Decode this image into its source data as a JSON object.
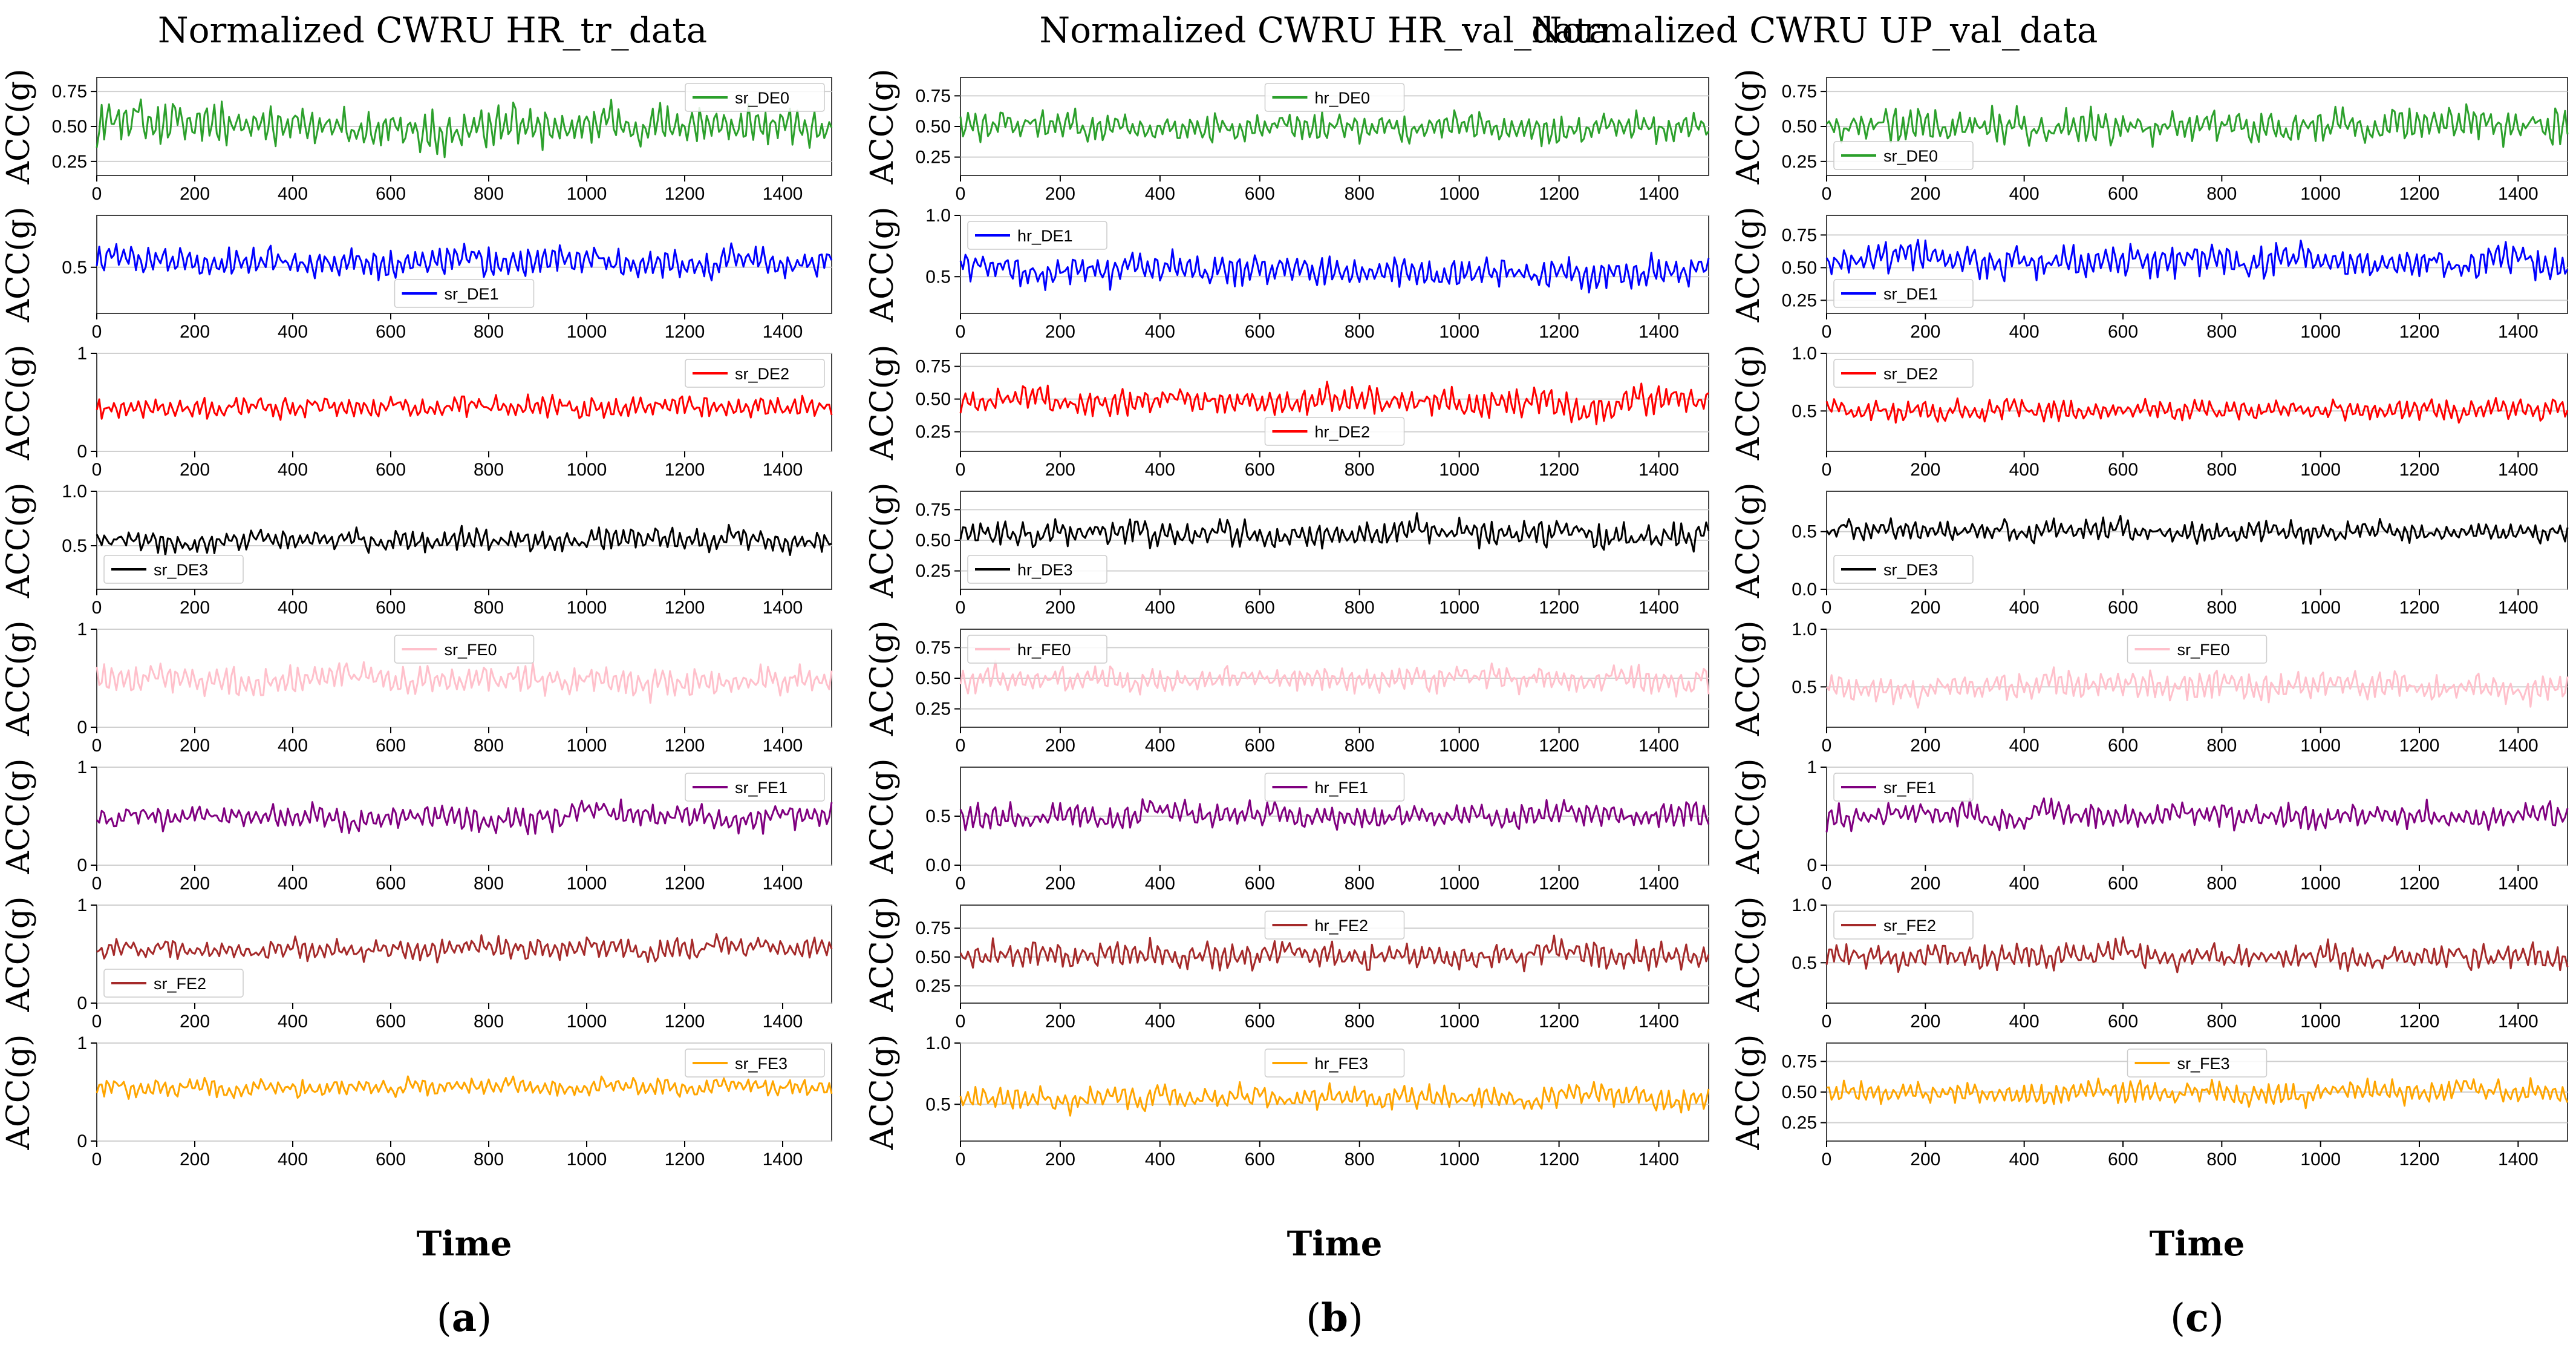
{
  "figure": {
    "xlabel": "Time",
    "ylabel": "ACC(g)"
  },
  "chart_data": [
    {
      "type": "line",
      "panel": "a",
      "caption_open": "(",
      "caption_letter": "a",
      "caption_close": ")",
      "title": "Normalized CWRU HR_tr_data",
      "xlabel": "Time",
      "xlim": [
        0,
        1500
      ],
      "xticks": [
        0,
        200,
        400,
        600,
        800,
        1000,
        1200,
        1400
      ],
      "subplots": [
        {
          "label": "sr_DE0",
          "color": "#2ca02c",
          "ylabel": "ACC(g)",
          "ylim": [
            0.15,
            0.85
          ],
          "yticks": [
            0.25,
            0.5,
            0.75
          ],
          "yticklabels": [
            "0.25",
            "0.50",
            "0.75"
          ],
          "legend": "upper-right",
          "mean": 0.5,
          "amp": 0.16,
          "seed": 11
        },
        {
          "label": "sr_DE1",
          "color": "#0000ff",
          "ylabel": "ACC(g)",
          "ylim": [
            0.1,
            0.95
          ],
          "yticks": [
            0.5
          ],
          "yticklabels": [
            "0.5"
          ],
          "legend": "lower-center",
          "mean": 0.55,
          "amp": 0.14,
          "seed": 12
        },
        {
          "label": "sr_DE2",
          "color": "#ff0000",
          "ylabel": "ACC(g)",
          "ylim": [
            0,
            1
          ],
          "yticks": [
            0,
            1
          ],
          "yticklabels": [
            "0",
            "1"
          ],
          "legend": "upper-right",
          "mean": 0.45,
          "amp": 0.12,
          "seed": 13
        },
        {
          "label": "sr_DE3",
          "color": "#000000",
          "ylabel": "ACC(g)",
          "ylim": [
            0.1,
            1.0
          ],
          "yticks": [
            0.5,
            1.0
          ],
          "yticklabels": [
            "0.5",
            "1.0"
          ],
          "legend": "lower-left",
          "mean": 0.55,
          "amp": 0.11,
          "seed": 14
        },
        {
          "label": "sr_FE0",
          "color": "#ffc0cb",
          "ylabel": "ACC(g)",
          "ylim": [
            0,
            1
          ],
          "yticks": [
            0,
            1
          ],
          "yticklabels": [
            "0",
            "1"
          ],
          "legend": "upper-center",
          "mean": 0.5,
          "amp": 0.16,
          "seed": 15
        },
        {
          "label": "sr_FE1",
          "color": "#800080",
          "ylabel": "ACC(g)",
          "ylim": [
            0,
            1
          ],
          "yticks": [
            0,
            1
          ],
          "yticklabels": [
            "0",
            "1"
          ],
          "legend": "upper-right",
          "mean": 0.5,
          "amp": 0.14,
          "seed": 16
        },
        {
          "label": "sr_FE2",
          "color": "#a52a2a",
          "ylabel": "ACC(g)",
          "ylim": [
            0,
            1
          ],
          "yticks": [
            0,
            1
          ],
          "yticklabels": [
            "0",
            "1"
          ],
          "legend": "lower-left",
          "mean": 0.55,
          "amp": 0.12,
          "seed": 17
        },
        {
          "label": "sr_FE3",
          "color": "#ffa500",
          "ylabel": "ACC(g)",
          "ylim": [
            0,
            1
          ],
          "yticks": [
            0,
            1
          ],
          "yticklabels": [
            "0",
            "1"
          ],
          "legend": "upper-right",
          "mean": 0.55,
          "amp": 0.1,
          "seed": 18
        }
      ]
    },
    {
      "type": "line",
      "panel": "b",
      "caption_open": "(",
      "caption_letter": "b",
      "caption_close": ")",
      "title": "Normalized CWRU HR_val_data",
      "xlabel": "Time",
      "xlim": [
        0,
        1500
      ],
      "xticks": [
        0,
        200,
        400,
        600,
        800,
        1000,
        1200,
        1400
      ],
      "subplots": [
        {
          "label": "hr_DE0",
          "color": "#2ca02c",
          "ylabel": "ACC(g)",
          "ylim": [
            0.1,
            0.9
          ],
          "yticks": [
            0.25,
            0.5,
            0.75
          ],
          "yticklabels": [
            "0.25",
            "0.50",
            "0.75"
          ],
          "legend": "upper-center",
          "mean": 0.5,
          "amp": 0.13,
          "seed": 21
        },
        {
          "label": "hr_DE1",
          "color": "#0000ff",
          "ylabel": "ACC(g)",
          "ylim": [
            0.2,
            1.0
          ],
          "yticks": [
            0.5,
            1.0
          ],
          "yticklabels": [
            "0.5",
            "1.0"
          ],
          "legend": "upper-left",
          "mean": 0.55,
          "amp": 0.14,
          "seed": 22
        },
        {
          "label": "hr_DE2",
          "color": "#ff0000",
          "ylabel": "ACC(g)",
          "ylim": [
            0.1,
            0.85
          ],
          "yticks": [
            0.25,
            0.5,
            0.75
          ],
          "yticklabels": [
            "0.25",
            "0.50",
            "0.75"
          ],
          "legend": "lower-center",
          "mean": 0.48,
          "amp": 0.12,
          "seed": 23
        },
        {
          "label": "hr_DE3",
          "color": "#000000",
          "ylabel": "ACC(g)",
          "ylim": [
            0.1,
            0.9
          ],
          "yticks": [
            0.25,
            0.5,
            0.75
          ],
          "yticklabels": [
            "0.25",
            "0.50",
            "0.75"
          ],
          "legend": "lower-left",
          "mean": 0.55,
          "amp": 0.12,
          "seed": 24
        },
        {
          "label": "hr_FE0",
          "color": "#ffc0cb",
          "ylabel": "ACC(g)",
          "ylim": [
            0.1,
            0.9
          ],
          "yticks": [
            0.25,
            0.5,
            0.75
          ],
          "yticklabels": [
            "0.25",
            "0.50",
            "0.75"
          ],
          "legend": "upper-left",
          "mean": 0.5,
          "amp": 0.12,
          "seed": 25
        },
        {
          "label": "hr_FE1",
          "color": "#800080",
          "ylabel": "ACC(g)",
          "ylim": [
            0,
            1
          ],
          "yticks": [
            0.0,
            0.5
          ],
          "yticklabels": [
            "0.0",
            "0.5"
          ],
          "legend": "upper-center",
          "mean": 0.5,
          "amp": 0.14,
          "seed": 26
        },
        {
          "label": "hr_FE2",
          "color": "#a52a2a",
          "ylabel": "ACC(g)",
          "ylim": [
            0.1,
            0.95
          ],
          "yticks": [
            0.25,
            0.5,
            0.75
          ],
          "yticklabels": [
            "0.25",
            "0.50",
            "0.75"
          ],
          "legend": "upper-center",
          "mean": 0.52,
          "amp": 0.13,
          "seed": 27
        },
        {
          "label": "hr_FE3",
          "color": "#ffa500",
          "ylabel": "ACC(g)",
          "ylim": [
            0.2,
            1.0
          ],
          "yticks": [
            0.5,
            1.0
          ],
          "yticklabels": [
            "0.5",
            "1.0"
          ],
          "legend": "upper-center",
          "mean": 0.55,
          "amp": 0.11,
          "seed": 28
        }
      ]
    },
    {
      "type": "line",
      "panel": "c",
      "caption_open": "(",
      "caption_letter": "c",
      "caption_close": ")",
      "title": "Normalized CWRU UP_val_data",
      "xlabel": "Time",
      "xlim": [
        0,
        1500
      ],
      "xticks": [
        0,
        200,
        400,
        600,
        800,
        1000,
        1200,
        1400
      ],
      "subplots": [
        {
          "label": "sr_DE0",
          "color": "#2ca02c",
          "ylabel": "ACC(g)",
          "ylim": [
            0.15,
            0.85
          ],
          "yticks": [
            0.25,
            0.5,
            0.75
          ],
          "yticklabels": [
            "0.25",
            "0.50",
            "0.75"
          ],
          "legend": "lower-left",
          "mean": 0.5,
          "amp": 0.14,
          "seed": 31
        },
        {
          "label": "sr_DE1",
          "color": "#0000ff",
          "ylabel": "ACC(g)",
          "ylim": [
            0.15,
            0.9
          ],
          "yticks": [
            0.25,
            0.5,
            0.75
          ],
          "yticklabels": [
            "0.25",
            "0.50",
            "0.75"
          ],
          "legend": "lower-left",
          "mean": 0.55,
          "amp": 0.14,
          "seed": 32
        },
        {
          "label": "sr_DE2",
          "color": "#ff0000",
          "ylabel": "ACC(g)",
          "ylim": [
            0.15,
            1.0
          ],
          "yticks": [
            0.5,
            1.0
          ],
          "yticklabels": [
            "0.5",
            "1.0"
          ],
          "legend": "upper-left",
          "mean": 0.5,
          "amp": 0.1,
          "seed": 33
        },
        {
          "label": "sr_DE3",
          "color": "#000000",
          "ylabel": "ACC(g)",
          "ylim": [
            0,
            0.85
          ],
          "yticks": [
            0.0,
            0.5
          ],
          "yticklabels": [
            "0.0",
            "0.5"
          ],
          "legend": "lower-left",
          "mean": 0.5,
          "amp": 0.1,
          "seed": 34
        },
        {
          "label": "sr_FE0",
          "color": "#ffc0cb",
          "ylabel": "ACC(g)",
          "ylim": [
            0.15,
            1.0
          ],
          "yticks": [
            0.5,
            1.0
          ],
          "yticklabels": [
            "0.5",
            "1.0"
          ],
          "legend": "upper-center",
          "mean": 0.5,
          "amp": 0.14,
          "seed": 35
        },
        {
          "label": "sr_FE1",
          "color": "#800080",
          "ylabel": "ACC(g)",
          "ylim": [
            0,
            1
          ],
          "yticks": [
            0,
            1
          ],
          "yticklabels": [
            "0",
            "1"
          ],
          "legend": "upper-left",
          "mean": 0.5,
          "amp": 0.14,
          "seed": 36
        },
        {
          "label": "sr_FE2",
          "color": "#a52a2a",
          "ylabel": "ACC(g)",
          "ylim": [
            0.15,
            1.0
          ],
          "yticks": [
            0.5,
            1.0
          ],
          "yticklabels": [
            "0.5",
            "1.0"
          ],
          "legend": "upper-left",
          "mean": 0.55,
          "amp": 0.12,
          "seed": 37
        },
        {
          "label": "sr_FE3",
          "color": "#ffa500",
          "ylabel": "ACC(g)",
          "ylim": [
            0.1,
            0.9
          ],
          "yticks": [
            0.25,
            0.5,
            0.75
          ],
          "yticklabels": [
            "0.25",
            "0.50",
            "0.75"
          ],
          "legend": "upper-center",
          "mean": 0.5,
          "amp": 0.1,
          "seed": 38
        }
      ]
    }
  ]
}
